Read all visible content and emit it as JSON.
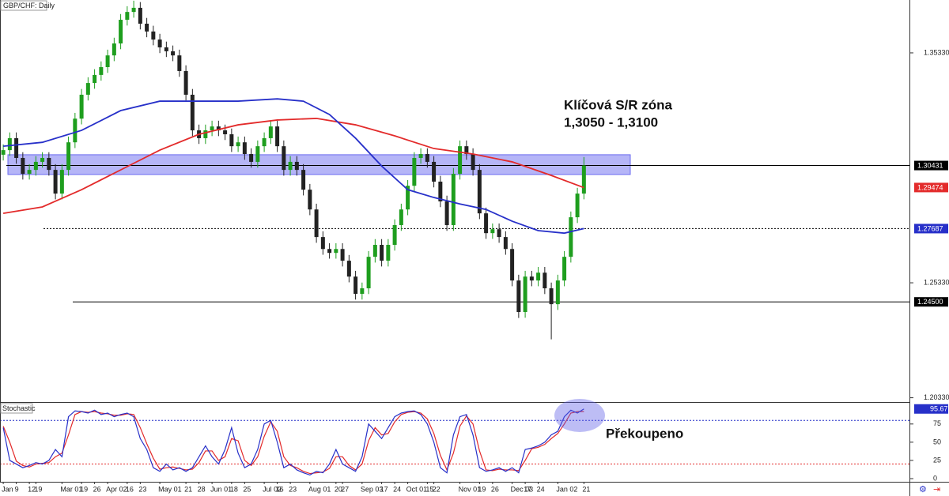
{
  "chart_data": [
    {
      "type": "candlestick",
      "title": "GBP/CHF: Daily",
      "categories": [
        "Jan",
        null,
        "9",
        null,
        "12",
        "19",
        null,
        null,
        null,
        "Mar 01",
        null,
        null,
        "19",
        null,
        "26",
        null,
        "Apr 02",
        null,
        null,
        "16",
        null,
        "23",
        null,
        null,
        "May 01",
        null,
        null,
        null,
        "21",
        null,
        "28",
        null,
        "Jun 01",
        null,
        null,
        "18",
        null,
        "25",
        null,
        null,
        "Jul 02",
        null,
        "16",
        null,
        "23",
        null,
        null,
        "Aug 01",
        null,
        null,
        null,
        "20",
        "27",
        null,
        null,
        "Sep 03",
        null,
        null,
        "17",
        null,
        "24",
        null,
        "Oct 01",
        null,
        null,
        "15",
        "22",
        null,
        null,
        null,
        "Nov 01",
        null,
        null,
        "19",
        null,
        "26",
        null,
        null,
        "Dec 03",
        null,
        "17",
        null,
        "24",
        null,
        null,
        "Jan 02",
        null,
        null,
        null,
        "21"
      ],
      "open": [
        1.309,
        1.311,
        1.3162,
        1.3076,
        1.3007,
        1.3024,
        1.3059,
        1.3076,
        1.3024,
        1.2921,
        1.3024,
        1.3144,
        1.3247,
        1.3351,
        1.3402,
        1.3437,
        1.3471,
        1.3522,
        1.3574,
        1.3677,
        1.3711,
        1.3729,
        1.366,
        1.3626,
        1.3591,
        1.3557,
        1.354,
        1.3522,
        1.3454,
        1.3351,
        1.3196,
        1.3162,
        1.3196,
        1.3213,
        1.3196,
        1.3179,
        1.3127,
        1.3144,
        1.3093,
        1.3059,
        1.3127,
        1.3162,
        1.3213,
        1.3127,
        1.3024,
        1.3059,
        1.3024,
        1.2938,
        1.2852,
        1.2732,
        1.268,
        1.2663,
        1.268,
        1.2629,
        1.256,
        1.2485,
        1.2509,
        1.2646,
        1.2698,
        1.2629,
        1.2698,
        1.2784,
        1.2852,
        1.2955,
        1.3076,
        1.3093,
        1.3059,
        1.2973,
        1.2887,
        1.2784,
        1.3007,
        1.3127,
        1.3093,
        1.3024,
        1.2835,
        1.2749,
        1.2766,
        1.2732,
        1.268,
        1.2543,
        1.2406,
        1.256,
        1.2543,
        1.2577,
        1.2509,
        1.244,
        1.2543,
        1.2646,
        1.2818,
        1.2921
      ],
      "high": [
        1.3135,
        1.3187,
        1.3187,
        1.3101,
        1.3049,
        1.3084,
        1.3101,
        1.3101,
        1.3049,
        1.3049,
        1.3169,
        1.3272,
        1.3376,
        1.3427,
        1.3462,
        1.3496,
        1.3547,
        1.3599,
        1.3702,
        1.3736,
        1.376,
        1.3754,
        1.3685,
        1.3651,
        1.3616,
        1.3582,
        1.3565,
        1.3547,
        1.3479,
        1.3376,
        1.3221,
        1.3221,
        1.3238,
        1.3238,
        1.3221,
        1.3204,
        1.3169,
        1.3169,
        1.3118,
        1.3152,
        1.3187,
        1.3238,
        1.3238,
        1.3152,
        1.3084,
        1.3084,
        1.3049,
        1.2963,
        1.2877,
        1.2757,
        1.2705,
        1.2705,
        1.2705,
        1.2654,
        1.2585,
        1.2534,
        1.2671,
        1.2723,
        1.2723,
        1.2723,
        1.2809,
        1.2877,
        1.298,
        1.3101,
        1.3118,
        1.3118,
        1.3084,
        1.2998,
        1.2912,
        1.3032,
        1.3152,
        1.3152,
        1.3118,
        1.3049,
        1.286,
        1.2791,
        1.2791,
        1.2757,
        1.2705,
        1.2568,
        1.2585,
        1.2585,
        1.2602,
        1.2602,
        1.2534,
        1.2568,
        1.2671,
        1.2843,
        1.2946,
        1.308
      ],
      "low": [
        1.3065,
        1.3085,
        1.3051,
        1.2982,
        1.2982,
        1.2999,
        1.3034,
        1.2999,
        1.2896,
        1.2896,
        1.2999,
        1.3119,
        1.3222,
        1.3326,
        1.3377,
        1.3412,
        1.3446,
        1.3497,
        1.3549,
        1.3652,
        1.3686,
        1.3635,
        1.3601,
        1.3566,
        1.3532,
        1.3515,
        1.3497,
        1.3429,
        1.3326,
        1.3171,
        1.3137,
        1.3137,
        1.3171,
        1.3171,
        1.3154,
        1.3102,
        1.3102,
        1.3068,
        1.3034,
        1.3034,
        1.3102,
        1.3137,
        1.3102,
        1.2999,
        1.2999,
        1.2999,
        1.2913,
        1.2827,
        1.2707,
        1.2655,
        1.2638,
        1.2638,
        1.2604,
        1.2535,
        1.246,
        1.246,
        1.2484,
        1.2621,
        1.2604,
        1.2604,
        1.2673,
        1.2759,
        1.2827,
        1.293,
        1.3051,
        1.3034,
        1.2948,
        1.2862,
        1.2759,
        1.2759,
        1.2982,
        1.3068,
        1.2999,
        1.281,
        1.2724,
        1.2724,
        1.2707,
        1.2655,
        1.2518,
        1.238,
        1.2381,
        1.2518,
        1.2518,
        1.2484,
        1.2287,
        1.2415,
        1.2518,
        1.2621,
        1.2793,
        1.2896
      ],
      "close": [
        1.311,
        1.3162,
        1.3076,
        1.3007,
        1.3024,
        1.3059,
        1.3076,
        1.3024,
        1.2921,
        1.3024,
        1.3144,
        1.3247,
        1.3351,
        1.3402,
        1.3437,
        1.3471,
        1.3522,
        1.3574,
        1.3677,
        1.3711,
        1.3729,
        1.366,
        1.3626,
        1.3591,
        1.3557,
        1.354,
        1.3522,
        1.3454,
        1.3351,
        1.3196,
        1.3162,
        1.3196,
        1.3213,
        1.3196,
        1.3179,
        1.3127,
        1.3144,
        1.3093,
        1.3059,
        1.3127,
        1.3162,
        1.3213,
        1.3127,
        1.3024,
        1.3059,
        1.3024,
        1.2938,
        1.2852,
        1.2732,
        1.268,
        1.2663,
        1.268,
        1.2629,
        1.256,
        1.2485,
        1.2509,
        1.2646,
        1.2698,
        1.2629,
        1.2698,
        1.2784,
        1.2852,
        1.2955,
        1.3076,
        1.3093,
        1.3059,
        1.2973,
        1.2887,
        1.2784,
        1.3007,
        1.3127,
        1.3093,
        1.3024,
        1.2835,
        1.2749,
        1.2766,
        1.2732,
        1.268,
        1.2543,
        1.2406,
        1.256,
        1.2543,
        1.2577,
        1.2509,
        1.244,
        1.2543,
        1.2646,
        1.2818,
        1.2921,
        1.3043
      ],
      "up_color": "#1e9e1e",
      "down_color": "#222222",
      "ylim": [
        1.2011,
        1.3763
      ],
      "yticks": [
        {
          "value": 1.3533,
          "label": "1.35330"
        },
        {
          "value": 1.2533,
          "label": "1.25330"
        },
        {
          "value": 1.2033,
          "label": "1.20330"
        }
      ],
      "series": [
        {
          "color": "#e32b2b",
          "x": [
            0,
            6,
            12,
            18,
            24,
            30,
            36,
            42,
            48,
            54,
            60,
            66,
            72,
            78,
            84,
            89
          ],
          "values": [
            1.2835,
            1.2863,
            1.2938,
            1.3024,
            1.311,
            1.3179,
            1.322,
            1.3241,
            1.3248,
            1.322,
            1.3172,
            1.3117,
            1.3093,
            1.3059,
            1.3,
            1.2947
          ]
        },
        {
          "color": "#2730c9",
          "x": [
            0,
            6,
            12,
            18,
            24,
            30,
            36,
            42,
            46,
            50,
            54,
            58,
            62,
            66,
            70,
            74,
            78,
            82,
            86,
            89
          ],
          "values": [
            1.3127,
            1.3144,
            1.3196,
            1.3282,
            1.3323,
            1.3323,
            1.3323,
            1.3333,
            1.3323,
            1.3265,
            1.3162,
            1.3041,
            1.2938,
            1.2904,
            1.2876,
            1.2852,
            1.2801,
            1.276,
            1.2749,
            1.2769
          ]
        }
      ],
      "zone": {
        "low": 1.3004,
        "high": 1.309,
        "color": "#6b6bf0"
      },
      "price_labels": [
        {
          "value": 1.30431,
          "label": "1.30431",
          "color": "#000000",
          "line": "solid"
        },
        {
          "value": 1.29474,
          "label": "1.29474",
          "color": "#e32b2b"
        },
        {
          "value": 1.27687,
          "label": "1.27687",
          "color": "#2730c9",
          "line": "dotted"
        },
        {
          "value": 1.245,
          "label": "1.24500",
          "color": "#000000",
          "line": "solid"
        }
      ],
      "annotations": [
        "Klíčová S/R zóna",
        "1,3050 - 1,3100"
      ]
    },
    {
      "type": "stochastic",
      "title": "Stochastic",
      "ylim": [
        0,
        103
      ],
      "yticks": [
        75,
        50,
        25,
        0
      ],
      "series": [
        {
          "color": "#2730c9",
          "values": [
            70,
            25,
            20,
            15,
            18,
            22,
            20,
            25,
            40,
            30,
            85,
            93,
            92,
            90,
            94,
            88,
            90,
            85,
            88,
            90,
            85,
            55,
            40,
            15,
            10,
            20,
            12,
            15,
            10,
            15,
            30,
            45,
            30,
            20,
            40,
            70,
            35,
            15,
            20,
            40,
            75,
            80,
            50,
            15,
            20,
            12,
            8,
            5,
            10,
            8,
            20,
            40,
            20,
            15,
            10,
            30,
            75,
            65,
            55,
            70,
            85,
            90,
            92,
            93,
            88,
            75,
            50,
            15,
            8,
            60,
            85,
            88,
            60,
            15,
            10,
            12,
            15,
            10,
            15,
            8,
            40,
            42,
            45,
            50,
            60,
            65,
            85,
            94,
            90,
            95.67
          ]
        },
        {
          "color": "#e32b2b",
          "values": [
            72,
            50,
            24,
            18,
            16,
            20,
            21,
            22,
            30,
            35,
            60,
            88,
            92,
            91,
            92,
            90,
            89,
            87,
            87,
            89,
            88,
            70,
            48,
            28,
            13,
            15,
            16,
            14,
            12,
            13,
            22,
            38,
            38,
            25,
            30,
            55,
            52,
            25,
            18,
            30,
            58,
            78,
            65,
            30,
            18,
            15,
            10,
            7,
            8,
            9,
            14,
            30,
            30,
            18,
            12,
            20,
            52,
            70,
            60,
            62,
            78,
            88,
            91,
            92,
            90,
            82,
            62,
            32,
            12,
            35,
            72,
            86,
            75,
            38,
            12,
            11,
            13,
            12,
            12,
            11,
            25,
            41,
            43,
            47,
            55,
            62,
            75,
            90,
            92,
            92
          ]
        }
      ],
      "levels": [
        {
          "value": 80,
          "color": "#2730c9"
        },
        {
          "value": 20,
          "color": "#e32b2b"
        }
      ],
      "last_label": 95.67,
      "annotation": "Překoupeno"
    }
  ]
}
